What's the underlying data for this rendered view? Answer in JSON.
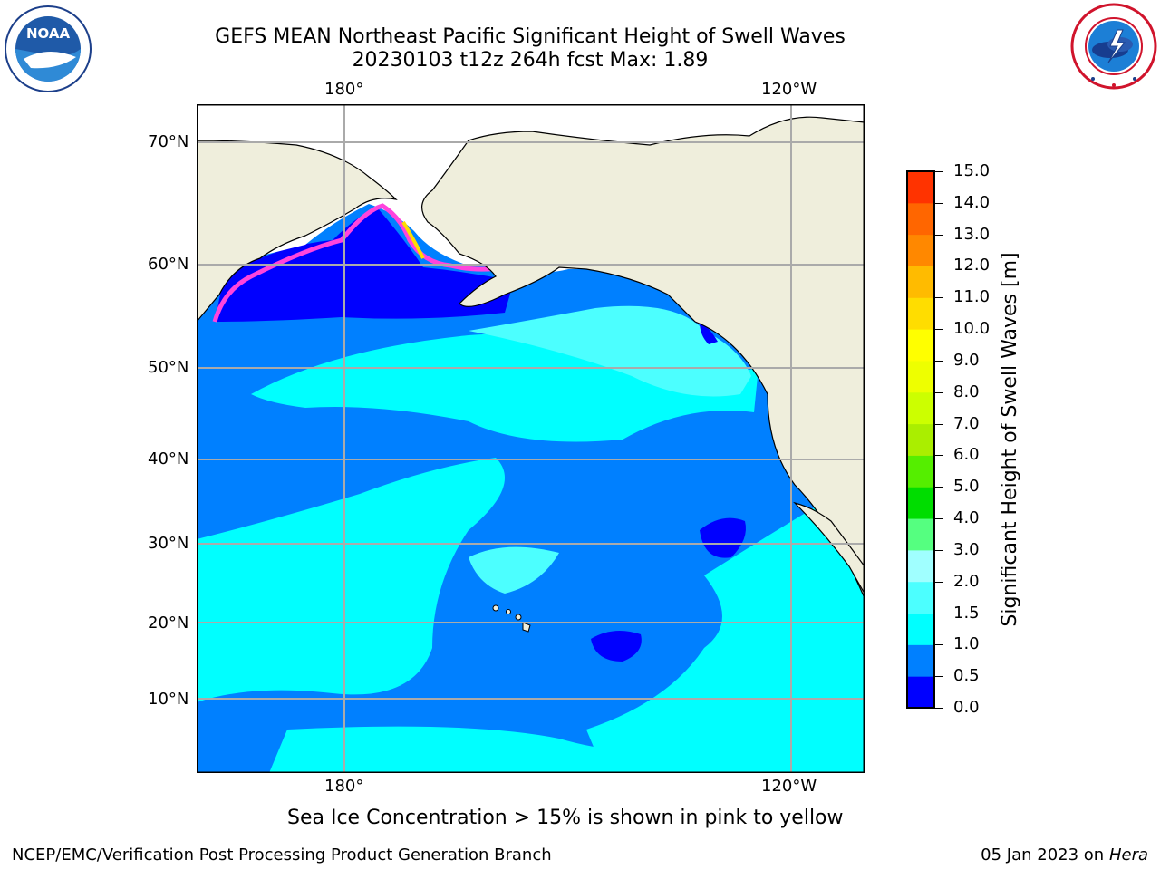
{
  "header": {
    "title_line1": "GEFS MEAN Northeast Pacific Significant Height of Swell Waves",
    "title_line2": "20230103 t12z 264h fcst   Max: 1.89"
  },
  "logos": {
    "left": "noaa-logo",
    "left_text": "NOAA",
    "right": "national-weather-service-logo"
  },
  "map": {
    "lon_labels_top": [
      "180°",
      "120°W"
    ],
    "lon_labels_bottom": [
      "180°",
      "120°W"
    ],
    "lat_labels": [
      "70°N",
      "60°N",
      "50°N",
      "40°N",
      "30°N",
      "20°N",
      "10°N"
    ],
    "colors": {
      "land": "#efeedc",
      "ice_free": "#ffffff",
      "grid": "#aaaaaa",
      "wave_0_0_5": "#0000ff",
      "wave_0_5_1_0": "#0080ff",
      "wave_1_0_1_5": "#00ffff",
      "wave_1_5_2_0": "#4cffff",
      "wave_2_0_3_0": "#a0ffff",
      "ice": "#ff44dd"
    }
  },
  "colorbar": {
    "ticks": [
      "15.0",
      "14.0",
      "13.0",
      "12.0",
      "11.0",
      "10.0",
      "9.0",
      "8.0",
      "7.0",
      "6.0",
      "5.0",
      "4.0",
      "3.0",
      "2.0",
      "1.5",
      "1.0",
      "0.5",
      "0.0"
    ],
    "colors_bottom_to_top": [
      "#0000ff",
      "#0080ff",
      "#00ffff",
      "#4cffff",
      "#a0ffff",
      "#55ff80",
      "#00dd00",
      "#55ee00",
      "#aaee00",
      "#ccff00",
      "#eeff00",
      "#ffff00",
      "#ffdd00",
      "#ffbb00",
      "#ff8800",
      "#ff6600",
      "#ff3300"
    ],
    "label": "Significant Height of Swell Waves [m]"
  },
  "note": "Sea Ice Concentration > 15% is shown in pink to yellow",
  "footer": {
    "left": "NCEP/EMC/Verification Post Processing Product Generation Branch",
    "right_date": "05 Jan 2023 on ",
    "right_machine": "Hera"
  }
}
